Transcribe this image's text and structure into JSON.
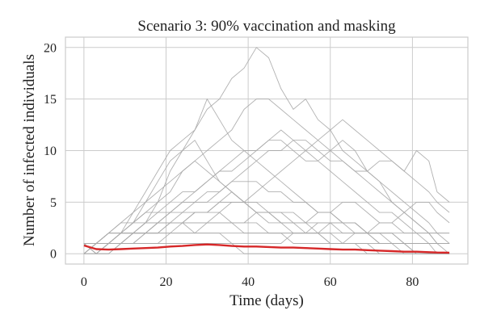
{
  "chart_data": {
    "type": "line",
    "title": "Scenario 3: 90% vaccination and masking",
    "xlabel": "Time (days)",
    "ylabel": "Number of infected individuals",
    "xlim": [
      -4.5,
      93.5
    ],
    "ylim": [
      -1,
      21
    ],
    "xticks": [
      0,
      20,
      40,
      60,
      80
    ],
    "yticks": [
      0,
      5,
      10,
      15,
      20
    ],
    "grid": true,
    "colors": {
      "runs": "#a9a9a9",
      "mean": "#d62728",
      "grid": "#cccccc",
      "frame": "#cccccc"
    },
    "series": [
      {
        "role": "run",
        "x": [
          0,
          3,
          6,
          9,
          12,
          15,
          18,
          21,
          24,
          27,
          30,
          33,
          36,
          39,
          42,
          45,
          48,
          51,
          54,
          57,
          60,
          63,
          66,
          69,
          72,
          75,
          78,
          81,
          84,
          86,
          89
        ],
        "y": [
          1,
          0,
          1,
          2,
          4,
          6,
          8,
          10,
          11,
          12,
          14,
          15,
          17,
          18,
          20,
          19,
          16,
          14,
          15,
          13,
          12,
          10,
          9,
          8,
          7,
          5,
          4,
          3,
          2,
          1,
          1
        ]
      },
      {
        "role": "run",
        "x": [
          0,
          3,
          6,
          9,
          12,
          15,
          18,
          21,
          24,
          27,
          30,
          33,
          36,
          39,
          42,
          45,
          48,
          51,
          54,
          57,
          60,
          63,
          66,
          69,
          72,
          75,
          78,
          81,
          84,
          86,
          89
        ],
        "y": [
          0,
          1,
          1,
          2,
          3,
          5,
          7,
          9,
          10,
          12,
          15,
          13,
          11,
          10,
          9,
          8,
          7,
          6,
          5,
          4,
          4,
          3,
          3,
          2,
          2,
          1,
          1,
          0,
          0,
          0,
          0
        ]
      },
      {
        "role": "run",
        "x": [
          0,
          3,
          6,
          9,
          12,
          15,
          18,
          21,
          24,
          27,
          30,
          33,
          36,
          39,
          42,
          45,
          48,
          51,
          54,
          57,
          60,
          63,
          66,
          69,
          72,
          75,
          78,
          81,
          84,
          86,
          89
        ],
        "y": [
          1,
          1,
          2,
          3,
          3,
          4,
          5,
          6,
          8,
          9,
          10,
          11,
          12,
          14,
          15,
          15,
          14,
          13,
          12,
          11,
          10,
          9,
          8,
          7,
          6,
          5,
          4,
          3,
          2,
          2,
          1
        ]
      },
      {
        "role": "run",
        "x": [
          0,
          3,
          6,
          9,
          12,
          15,
          18,
          21,
          24,
          27,
          30,
          33,
          36,
          39,
          42,
          45,
          48,
          51,
          54,
          57,
          60,
          63,
          66,
          69,
          72,
          75,
          78,
          81,
          84,
          86,
          89
        ],
        "y": [
          1,
          0,
          1,
          1,
          2,
          2,
          3,
          4,
          5,
          6,
          7,
          8,
          8,
          9,
          10,
          11,
          12,
          11,
          10,
          9,
          10,
          11,
          10,
          8,
          7,
          6,
          5,
          4,
          3,
          2,
          2
        ]
      },
      {
        "role": "run",
        "x": [
          0,
          3,
          6,
          9,
          12,
          15,
          18,
          21,
          24,
          27,
          30,
          33,
          36,
          39,
          42,
          45,
          48,
          51,
          54,
          57,
          60,
          63,
          66,
          69,
          72,
          75,
          78,
          81,
          84,
          86,
          89
        ],
        "y": [
          0,
          1,
          1,
          2,
          2,
          3,
          3,
          4,
          4,
          5,
          5,
          6,
          7,
          8,
          9,
          10,
          10,
          11,
          11,
          10,
          9,
          9,
          8,
          8,
          9,
          9,
          8,
          10,
          9,
          6,
          5
        ]
      },
      {
        "role": "run",
        "x": [
          0,
          3,
          6,
          9,
          12,
          15,
          18,
          21,
          24,
          27,
          30,
          33,
          36,
          39,
          42,
          45,
          48,
          51,
          54,
          57,
          60,
          63,
          66,
          69,
          72,
          75,
          78,
          81,
          84,
          86,
          89
        ],
        "y": [
          1,
          1,
          2,
          3,
          4,
          5,
          6,
          7,
          8,
          9,
          8,
          7,
          6,
          5,
          5,
          4,
          4,
          3,
          3,
          2,
          2,
          1,
          1,
          1,
          0,
          0,
          0,
          0,
          0,
          0,
          0
        ]
      },
      {
        "role": "run",
        "x": [
          0,
          3,
          6,
          9,
          12,
          15,
          18,
          21,
          24,
          27,
          30,
          33,
          36,
          39,
          42,
          45,
          48,
          51,
          54,
          57,
          60,
          63,
          66,
          69,
          72,
          75,
          78,
          81,
          84,
          86,
          89
        ],
        "y": [
          1,
          1,
          1,
          1,
          1,
          2,
          2,
          2,
          3,
          3,
          3,
          4,
          5,
          5,
          6,
          7,
          8,
          9,
          10,
          11,
          12,
          13,
          12,
          11,
          10,
          9,
          8,
          7,
          6,
          5,
          4
        ]
      },
      {
        "role": "run",
        "x": [
          0,
          3,
          6,
          9,
          12,
          15,
          18,
          21,
          24,
          27,
          30,
          33,
          36,
          39,
          42,
          45,
          48,
          51,
          54,
          57,
          60,
          63,
          66,
          69,
          72,
          75,
          78,
          81,
          84,
          86,
          89
        ],
        "y": [
          0,
          1,
          2,
          2,
          3,
          3,
          4,
          4,
          5,
          5,
          6,
          6,
          7,
          7,
          7,
          6,
          6,
          5,
          5,
          4,
          4,
          3,
          3,
          2,
          2,
          2,
          1,
          1,
          1,
          1,
          1
        ]
      },
      {
        "role": "run",
        "x": [
          0,
          3,
          6,
          9,
          12,
          15,
          18,
          21,
          24,
          27,
          30,
          33,
          36,
          39,
          42,
          45,
          48,
          51,
          54,
          57,
          60,
          63,
          66,
          69,
          72,
          75,
          78,
          81,
          84,
          86,
          89
        ],
        "y": [
          1,
          0,
          1,
          1,
          2,
          3,
          5,
          8,
          10,
          11,
          9,
          7,
          6,
          5,
          4,
          3,
          3,
          2,
          2,
          2,
          1,
          1,
          1,
          0,
          0,
          0,
          0,
          0,
          0,
          0,
          0
        ]
      },
      {
        "role": "run",
        "x": [
          0,
          3,
          6,
          9,
          12,
          15,
          18,
          21,
          24,
          27,
          30,
          33,
          36,
          39,
          42,
          45,
          48,
          51,
          54,
          57,
          60,
          63,
          66,
          69,
          72,
          75,
          78,
          81,
          84,
          86,
          89
        ],
        "y": [
          1,
          1,
          2,
          2,
          2,
          3,
          3,
          3,
          4,
          4,
          4,
          4,
          3,
          3,
          3,
          2,
          2,
          2,
          2,
          3,
          3,
          3,
          2,
          2,
          1,
          1,
          1,
          0,
          0,
          0,
          0
        ]
      },
      {
        "role": "run",
        "x": [
          0,
          3,
          6,
          9,
          12,
          15,
          18,
          21,
          24,
          27,
          30,
          33,
          36,
          39,
          42,
          45,
          48,
          51,
          54,
          57,
          60,
          63,
          66,
          69,
          72,
          75,
          78,
          81,
          84,
          86,
          89
        ],
        "y": [
          0,
          1,
          1,
          2,
          2,
          2,
          3,
          3,
          3,
          4,
          4,
          5,
          5,
          5,
          4,
          4,
          3,
          3,
          3,
          4,
          4,
          5,
          5,
          4,
          3,
          3,
          2,
          2,
          2,
          1,
          1
        ]
      },
      {
        "role": "run",
        "x": [
          0,
          3,
          6,
          9,
          12,
          15,
          18,
          21,
          24,
          27,
          30,
          33,
          36,
          39,
          42,
          45,
          48,
          51,
          54,
          57,
          60,
          63,
          66,
          69,
          72,
          75,
          78,
          81,
          84,
          86,
          89
        ],
        "y": [
          1,
          1,
          1,
          2,
          2,
          2,
          2,
          3,
          3,
          3,
          3,
          3,
          3,
          2,
          2,
          2,
          2,
          1,
          1,
          1,
          1,
          1,
          2,
          2,
          3,
          3,
          4,
          5,
          5,
          4,
          3
        ]
      },
      {
        "role": "run",
        "x": [
          0,
          3,
          6,
          9,
          12,
          15,
          18,
          21,
          24,
          27,
          30,
          33,
          36,
          39,
          42,
          45,
          48,
          51,
          54,
          57,
          60,
          63,
          66,
          69,
          72,
          75,
          78,
          81,
          84,
          86,
          89
        ],
        "y": [
          1,
          1,
          1,
          1,
          2,
          2,
          2,
          2,
          2,
          2,
          2,
          2,
          2,
          2,
          2,
          2,
          2,
          2,
          2,
          2,
          2,
          2,
          2,
          2,
          2,
          2,
          2,
          2,
          2,
          2,
          2
        ]
      },
      {
        "role": "run",
        "x": [
          0,
          3,
          6,
          9,
          12,
          15,
          18,
          21,
          24,
          27,
          30,
          33,
          36,
          39,
          42,
          45,
          48,
          51,
          54,
          57,
          60,
          63,
          66,
          69,
          72,
          75,
          78,
          81,
          84,
          86,
          89
        ],
        "y": [
          0,
          0,
          1,
          1,
          1,
          2,
          2,
          3,
          3,
          4,
          4,
          5,
          6,
          5,
          4,
          4,
          3,
          3,
          2,
          2,
          1,
          1,
          1,
          1,
          1,
          1,
          0,
          0,
          0,
          0,
          0
        ]
      },
      {
        "role": "run",
        "x": [
          0,
          3,
          6,
          9,
          12,
          15,
          18,
          21,
          24,
          27,
          30,
          33,
          36,
          39,
          42,
          45,
          48,
          51,
          54,
          57,
          60,
          63,
          66,
          69,
          72,
          75,
          78,
          81,
          84,
          86,
          89
        ],
        "y": [
          1,
          0,
          0,
          1,
          1,
          1,
          1,
          2,
          2,
          2,
          3,
          3,
          3,
          3,
          4,
          4,
          4,
          4,
          3,
          3,
          3,
          2,
          2,
          2,
          1,
          1,
          1,
          1,
          1,
          1,
          1
        ]
      },
      {
        "role": "run",
        "x": [
          0,
          3,
          6,
          9,
          12,
          15,
          18,
          21,
          24,
          27,
          30,
          33,
          36,
          39,
          42,
          45,
          48,
          51,
          54,
          57,
          60,
          63,
          66,
          69,
          72,
          75,
          78,
          81,
          84,
          86,
          89
        ],
        "y": [
          0,
          0,
          0,
          1,
          1,
          1,
          1,
          1,
          1,
          1,
          1,
          1,
          1,
          0,
          0,
          0,
          0,
          0,
          0,
          0,
          0,
          0,
          0,
          0,
          0,
          0,
          0,
          0,
          0,
          0,
          0
        ]
      },
      {
        "role": "run",
        "x": [
          0,
          3,
          6,
          9,
          12,
          15,
          18,
          21,
          24,
          27,
          30,
          33,
          36,
          39,
          42,
          45,
          48,
          51,
          54,
          57,
          60,
          63,
          66,
          69,
          72,
          75,
          78,
          81,
          84,
          86,
          89
        ],
        "y": [
          1,
          1,
          2,
          2,
          3,
          4,
          4,
          5,
          6,
          6,
          7,
          8,
          9,
          10,
          10,
          11,
          11,
          10,
          9,
          9,
          8,
          7,
          6,
          5,
          4,
          4,
          3,
          2,
          1,
          1,
          0
        ]
      },
      {
        "role": "run",
        "x": [
          0,
          3,
          6,
          9,
          12,
          15,
          18,
          21,
          24,
          27,
          30,
          33,
          36,
          39,
          42,
          45,
          48,
          51,
          54,
          57,
          60,
          63,
          66,
          69,
          72,
          75,
          78,
          81,
          84,
          86,
          89
        ],
        "y": [
          0,
          1,
          1,
          1,
          2,
          2,
          3,
          3,
          3,
          2,
          2,
          2,
          1,
          1,
          1,
          1,
          1,
          2,
          2,
          2,
          3,
          3,
          3,
          2,
          2,
          2,
          1,
          1,
          1,
          0,
          0
        ]
      },
      {
        "role": "mean",
        "x": [
          0,
          3,
          6,
          9,
          12,
          15,
          18,
          21,
          24,
          27,
          30,
          33,
          36,
          39,
          42,
          45,
          48,
          51,
          54,
          57,
          60,
          63,
          66,
          69,
          72,
          75,
          78,
          81,
          84,
          86,
          89
        ],
        "y": [
          0.8,
          0.45,
          0.4,
          0.45,
          0.5,
          0.55,
          0.6,
          0.7,
          0.75,
          0.85,
          0.9,
          0.85,
          0.75,
          0.7,
          0.7,
          0.65,
          0.6,
          0.6,
          0.55,
          0.5,
          0.45,
          0.4,
          0.4,
          0.35,
          0.3,
          0.25,
          0.2,
          0.2,
          0.15,
          0.12,
          0.1
        ]
      }
    ]
  }
}
